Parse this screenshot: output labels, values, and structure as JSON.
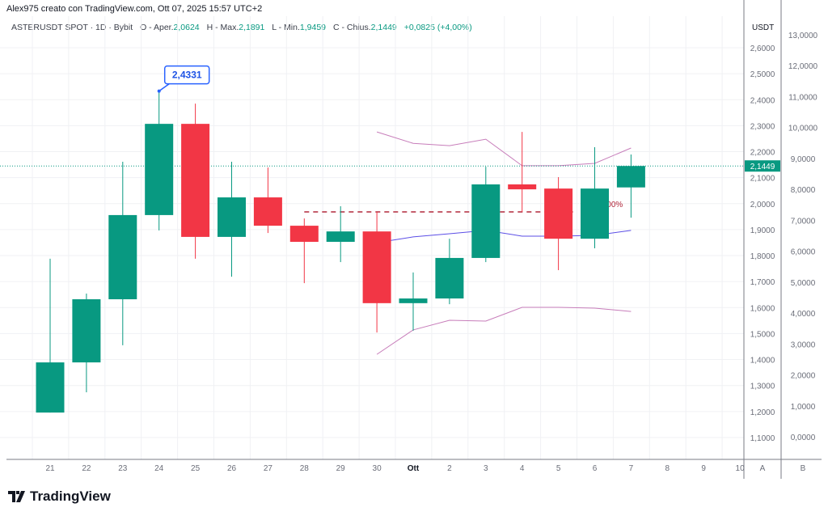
{
  "header": {
    "title": "Alex975 creato con TradingView.com, Ott 07, 2025 15:57 UTC+2"
  },
  "legend": {
    "symbol": "ASTERUSDT SPOT · 1D · Bybit",
    "open_label": "O - Aper.",
    "open": "2,0624",
    "high_label": "H - Max.",
    "high": "2,1891",
    "low_label": "L - Min.",
    "low": "1,9459",
    "close_label": "C - Chius.",
    "close": "2,1449",
    "change": "+0,0825 (+4,00%)"
  },
  "logo": {
    "text": "TradingView"
  },
  "colors": {
    "up": "#089981",
    "down": "#f23645",
    "bb_band": "#c77dba",
    "bb_mid": "#5b4ee6",
    "callout": "#2962ff",
    "dashed": "#b2283b"
  },
  "chart_data": {
    "type": "candlestick",
    "currency_label": "USDT",
    "x_tick_labels": [
      "21",
      "22",
      "23",
      "24",
      "25",
      "26",
      "27",
      "28",
      "29",
      "30",
      "Ott",
      "2",
      "3",
      "4",
      "5",
      "6",
      "7",
      "8",
      "9",
      "10"
    ],
    "candles": [
      {
        "date": "21",
        "o": 1.196,
        "h": 1.788,
        "l": 1.196,
        "c": 1.389
      },
      {
        "date": "22",
        "o": 1.389,
        "h": 1.654,
        "l": 1.274,
        "c": 1.632
      },
      {
        "date": "23",
        "o": 1.632,
        "h": 2.161,
        "l": 1.455,
        "c": 1.956
      },
      {
        "date": "24",
        "o": 1.956,
        "h": 2.4331,
        "l": 1.897,
        "c": 2.307
      },
      {
        "date": "25",
        "o": 2.307,
        "h": 2.385,
        "l": 1.788,
        "c": 1.872
      },
      {
        "date": "26",
        "o": 1.872,
        "h": 2.161,
        "l": 1.719,
        "c": 2.024
      },
      {
        "date": "27",
        "o": 2.024,
        "h": 2.139,
        "l": 1.887,
        "c": 1.915
      },
      {
        "date": "28",
        "o": 1.915,
        "h": 1.943,
        "l": 1.694,
        "c": 1.853
      },
      {
        "date": "29",
        "o": 1.853,
        "h": 1.99,
        "l": 1.775,
        "c": 1.893
      },
      {
        "date": "30",
        "o": 1.893,
        "h": 1.968,
        "l": 1.504,
        "c": 1.617
      },
      {
        "date": "Ott",
        "o": 1.617,
        "h": 1.735,
        "l": 1.511,
        "c": 1.635
      },
      {
        "date": "2",
        "o": 1.635,
        "h": 1.865,
        "l": 1.613,
        "c": 1.791
      },
      {
        "date": "3",
        "o": 1.791,
        "h": 2.142,
        "l": 1.775,
        "c": 2.074
      },
      {
        "date": "4",
        "o": 2.074,
        "h": 2.276,
        "l": 1.968,
        "c": 2.055
      },
      {
        "date": "5",
        "o": 2.058,
        "h": 2.102,
        "l": 1.744,
        "c": 1.865
      },
      {
        "date": "6",
        "o": 1.865,
        "h": 2.217,
        "l": 1.828,
        "c": 2.058
      },
      {
        "date": "7",
        "o": 2.0624,
        "h": 2.1891,
        "l": 1.9459,
        "c": 2.1449
      }
    ],
    "bands": {
      "start_index": 9,
      "upper": [
        2.276,
        2.232,
        2.223,
        2.248,
        2.146,
        2.146,
        2.155,
        2.214
      ],
      "middle": [
        1.85,
        1.872,
        1.884,
        1.897,
        1.875,
        1.875,
        1.878,
        1.897
      ],
      "lower": [
        1.42,
        1.514,
        1.551,
        1.548,
        1.601,
        1.601,
        1.598,
        1.585
      ]
    },
    "dashed_level": {
      "price": 1.968,
      "from_index": 7,
      "to_index": 14,
      "label": ",00%"
    },
    "high_callout": {
      "index": 3,
      "label": "2,4331"
    },
    "last_price_label": "2,1449",
    "y_axis_a": {
      "label": "A",
      "range": [
        1.1,
        2.6
      ],
      "ticks": [
        "2,6000",
        "2,5000",
        "2,4000",
        "2,3000",
        "2,2000",
        "2,1000",
        "2,0000",
        "1,9000",
        "1,8000",
        "1,7000",
        "1,6000",
        "1,5000",
        "1,4000",
        "1,3000",
        "1,2000",
        "1,1000"
      ]
    },
    "y_axis_b": {
      "label": "B",
      "range": [
        0,
        13
      ],
      "ticks": [
        "13,0000",
        "12,0000",
        "11,0000",
        "10,0000",
        "9,0000",
        "8,0000",
        "7,0000",
        "6,0000",
        "5,0000",
        "4,0000",
        "3,0000",
        "2,0000",
        "1,0000",
        "0,0000"
      ]
    },
    "grid": true
  }
}
